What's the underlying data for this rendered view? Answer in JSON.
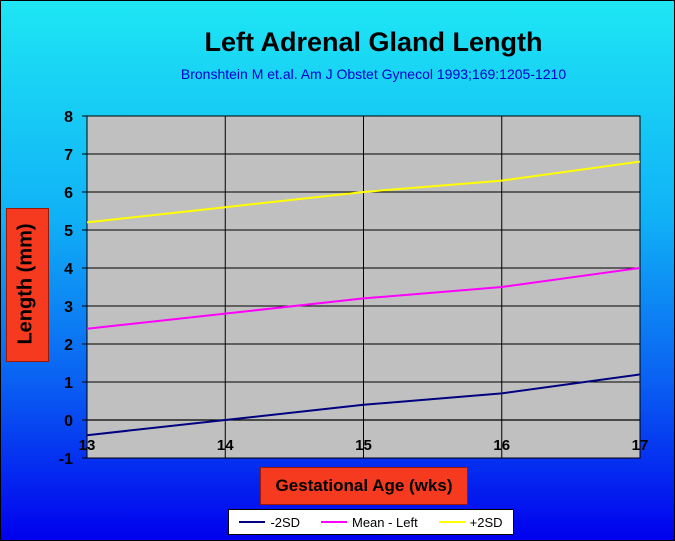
{
  "chart_data": {
    "type": "line",
    "title": "Left Adrenal Gland Length",
    "subtitle": "Bronshtein M et.al. Am J Obstet Gynecol 1993;169:1205-1210",
    "xlabel": "Gestational Age (wks)",
    "ylabel": "Length (mm)",
    "x": [
      13,
      14,
      15,
      16,
      17
    ],
    "xlim": [
      13,
      17
    ],
    "ylim": [
      -1,
      8
    ],
    "yticks": [
      -1,
      0,
      1,
      2,
      3,
      4,
      5,
      6,
      7,
      8
    ],
    "xticks": [
      13,
      14,
      15,
      16,
      17
    ],
    "grid": true,
    "legend_position": "bottom",
    "plot_background": "#c0c0c0",
    "series": [
      {
        "name": "-2SD",
        "color": "#000080",
        "values": [
          -0.4,
          0.0,
          0.4,
          0.7,
          1.2
        ]
      },
      {
        "name": "Mean - Left",
        "color": "#ff00ff",
        "values": [
          2.4,
          2.8,
          3.2,
          3.5,
          4.0
        ]
      },
      {
        "name": "+2SD",
        "color": "#ffff00",
        "values": [
          5.2,
          5.6,
          6.0,
          6.3,
          6.8
        ]
      }
    ]
  }
}
